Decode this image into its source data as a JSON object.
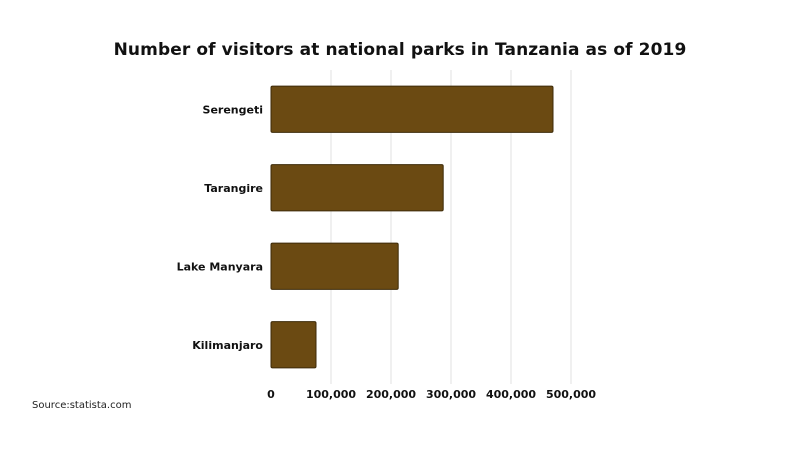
{
  "chart_data": {
    "type": "bar",
    "orientation": "horizontal",
    "title": "Number of visitors at national parks in Tanzania as of 2019",
    "categories": [
      "Serengeti",
      "Tarangire",
      "Lake Manyara",
      "Kilimanjaro"
    ],
    "values": [
      470000,
      287000,
      212000,
      75000
    ],
    "xlim": [
      0,
      500000
    ],
    "xticks": [
      "0",
      "100,000",
      "200,000",
      "300,000",
      "400,000",
      "500,000"
    ],
    "xtick_values": [
      0,
      100000,
      200000,
      300000,
      400000,
      500000
    ],
    "grid": true,
    "bar_color": "#6b4a12",
    "bar_edge_color": "#3d2a08"
  },
  "source": "Source:statista.com"
}
